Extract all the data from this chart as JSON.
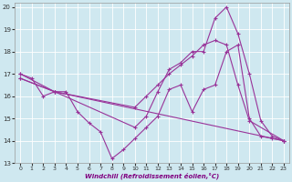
{
  "background_color": "#cfe8f0",
  "grid_color": "#ffffff",
  "line_color": "#993399",
  "xlabel": "Windchill (Refroidissement éolien,°C)",
  "xlim": [
    -0.5,
    23.5
  ],
  "ylim": [
    13,
    20.2
  ],
  "xticks": [
    0,
    1,
    2,
    3,
    4,
    5,
    6,
    7,
    8,
    9,
    10,
    11,
    12,
    13,
    14,
    15,
    16,
    17,
    18,
    19,
    20,
    21,
    22,
    23
  ],
  "yticks": [
    13,
    14,
    15,
    16,
    17,
    18,
    19,
    20
  ],
  "series": [
    {
      "x": [
        0,
        1,
        2,
        3,
        4,
        5,
        6,
        7,
        8,
        9,
        10,
        11,
        12,
        13,
        14,
        15,
        16,
        17,
        18,
        19,
        20,
        21,
        22,
        23
      ],
      "y": [
        17.0,
        16.8,
        16.0,
        16.2,
        16.2,
        15.3,
        14.8,
        14.4,
        13.2,
        13.6,
        14.1,
        14.6,
        15.1,
        16.3,
        16.5,
        15.3,
        16.3,
        16.5,
        18.0,
        18.3,
        15.0,
        14.2,
        14.1,
        14.0
      ]
    },
    {
      "x": [
        0,
        3,
        10,
        11,
        12,
        13,
        14,
        15,
        16,
        17,
        18,
        19,
        20,
        21,
        22,
        23
      ],
      "y": [
        16.8,
        16.2,
        14.6,
        15.1,
        16.2,
        17.2,
        17.5,
        18.0,
        18.0,
        19.5,
        20.0,
        18.8,
        17.0,
        14.9,
        14.2,
        14.0
      ]
    },
    {
      "x": [
        0,
        3,
        10,
        11,
        12,
        13,
        14,
        15,
        16,
        17,
        18,
        19,
        20,
        23
      ],
      "y": [
        17.0,
        16.2,
        15.5,
        16.0,
        16.5,
        17.0,
        17.4,
        17.8,
        18.3,
        18.5,
        18.3,
        16.5,
        14.9,
        14.0
      ]
    },
    {
      "x": [
        0,
        3,
        23
      ],
      "y": [
        16.8,
        16.2,
        14.0
      ]
    }
  ]
}
